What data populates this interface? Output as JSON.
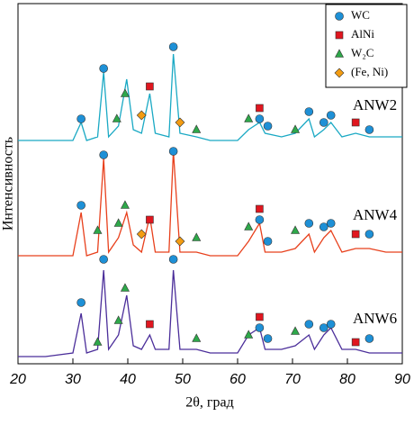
{
  "chart_data": {
    "type": "line",
    "xlabel": "2θ, град",
    "ylabel": "Интенсивность",
    "xlim": [
      20,
      90
    ],
    "xticks": [
      20,
      30,
      40,
      50,
      60,
      70,
      80,
      90
    ],
    "ylim": [
      0,
      100
    ],
    "x": [
      20,
      25,
      30,
      31.5,
      32.5,
      34.5,
      35.6,
      36.5,
      38.3,
      39.8,
      41,
      42.5,
      44,
      45,
      47.5,
      48.3,
      49.5,
      52.5,
      55,
      60,
      62,
      64,
      65,
      68,
      70.5,
      73,
      74,
      75.7,
      77,
      79,
      81.5,
      84,
      87,
      90
    ],
    "series": [
      {
        "name": "ANW2",
        "color": "#1aa9c4",
        "values": [
          62,
          62,
          62,
          67,
          62,
          63,
          81,
          63,
          66,
          79,
          65,
          64,
          75,
          64,
          63,
          86,
          64,
          63,
          62,
          62,
          65,
          67,
          64,
          63,
          64,
          68,
          63,
          65,
          67,
          63,
          64,
          63,
          63,
          63
        ]
      },
      {
        "name": "ANW4",
        "color": "#e8401c",
        "values": [
          30,
          30,
          30,
          42,
          30,
          31,
          57,
          31,
          35,
          42,
          33,
          31,
          41,
          31,
          31,
          59,
          31,
          31,
          30,
          30,
          34,
          39,
          31,
          31,
          32,
          36,
          31,
          35,
          37,
          31,
          32,
          32,
          31,
          31
        ]
      },
      {
        "name": "ANW6",
        "color": "#4b2e9a",
        "values": [
          2,
          2,
          3,
          14,
          3,
          4,
          26,
          4,
          8,
          19,
          5,
          4,
          8,
          4,
          4,
          26,
          4,
          4,
          3,
          3,
          8,
          10,
          4,
          4,
          5,
          8,
          4,
          8,
          10,
          4,
          4,
          3,
          3,
          3
        ]
      }
    ],
    "phases": [
      {
        "name": "WC",
        "marker": "circle",
        "color": "#1e90d6",
        "x": [
          31.5,
          35.6,
          48.3,
          64,
          65.5,
          73,
          75.7,
          77,
          84,
          31.5,
          35.6,
          48.3,
          64,
          65.5,
          73,
          75.7,
          77,
          84,
          31.5,
          35.6,
          48.3,
          64,
          65.5,
          73,
          75.7,
          77,
          84
        ],
        "values": [
          68,
          82,
          88,
          68,
          66,
          70,
          67,
          69,
          65,
          44,
          58,
          59,
          40,
          34,
          39,
          38,
          39,
          36,
          17,
          29,
          29,
          10,
          7,
          11,
          10,
          11,
          7
        ]
      },
      {
        "name": "AlNi",
        "marker": "square",
        "color": "#e0161f",
        "x": [
          44,
          64,
          81.5,
          44,
          64,
          81.5,
          44,
          64,
          81.5
        ],
        "values": [
          77,
          71,
          67,
          40,
          43,
          36,
          11,
          13,
          6
        ]
      },
      {
        "name": "W₂C",
        "marker": "triangle",
        "color": "#2ea84a",
        "x": [
          38,
          39.5,
          52.5,
          62,
          70.5,
          34.5,
          38.3,
          39.5,
          52.5,
          62,
          70.5,
          34.5,
          38.3,
          39.5,
          52.5,
          62,
          70.5
        ],
        "values": [
          68,
          75,
          65,
          68,
          65,
          37,
          39,
          44,
          35,
          38,
          37,
          6,
          12,
          21,
          7,
          8,
          9
        ]
      },
      {
        "name": "(Fe, Ni)",
        "marker": "diamond",
        "color": "#f39c12",
        "x": [
          42.5,
          49.5,
          42.5,
          49.5
        ],
        "values": [
          69,
          67,
          36,
          34
        ]
      }
    ]
  }
}
